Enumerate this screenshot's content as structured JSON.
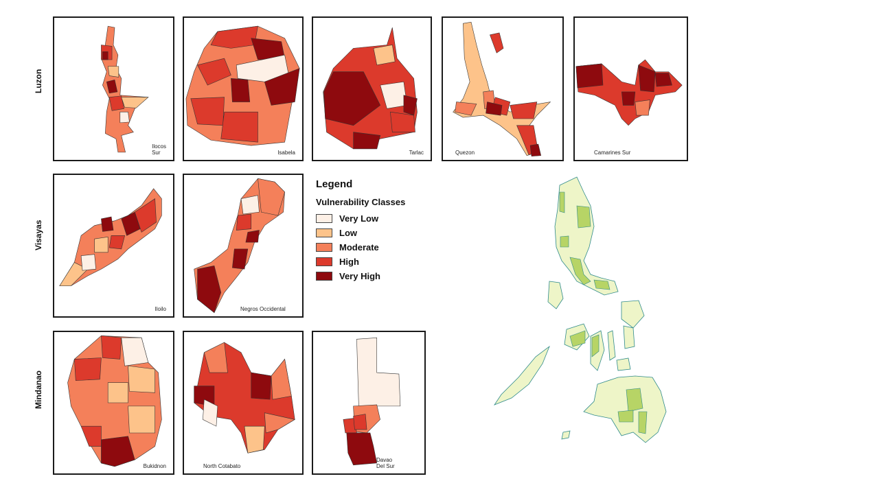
{
  "regions": {
    "luzon": "Luzon",
    "visayas": "Visayas",
    "mindanao": "Mindanao"
  },
  "panels": {
    "ilocos_sur": "Ilocos\nSur",
    "isabela": "Isabela",
    "tarlac": "Tarlac",
    "quezon": "Quezon",
    "camarines_sur": "Camarines Sur",
    "iloilo": "Iloilo",
    "negros_occidental": "Negros Occidental",
    "bukidnon": "Bukidnon",
    "north_cotabato": "North Cotabato",
    "davao_del_sur": "Davao\nDel Sur"
  },
  "legend": {
    "title": "Legend",
    "subtitle": "Vulnerability Classes",
    "classes": [
      {
        "label": "Very Low",
        "color": "#fdf0e6"
      },
      {
        "label": "Low",
        "color": "#fdc38a"
      },
      {
        "label": "Moderate",
        "color": "#f4805a"
      },
      {
        "label": "High",
        "color": "#dc3a2c"
      },
      {
        "label": "Very High",
        "color": "#8e0a0e"
      }
    ]
  },
  "colors": {
    "outline": "#333333",
    "map_fill": "#eef5c8",
    "map_highlight": "#b7d466",
    "map_stroke": "#2e8a8a"
  }
}
